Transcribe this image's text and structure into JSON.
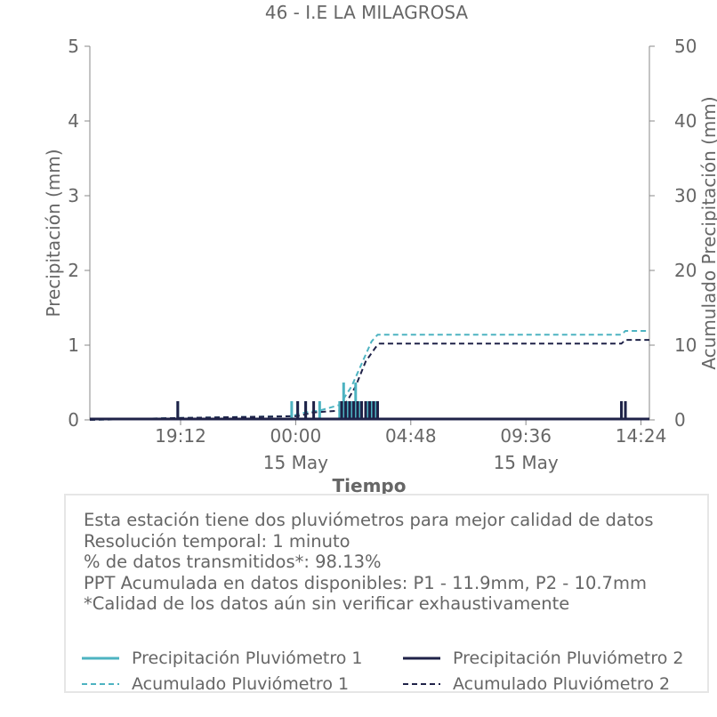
{
  "colors": {
    "p1": "#4db3c1",
    "p2": "#1f2248",
    "text": "#666666",
    "axis": "#888888"
  },
  "info": {
    "lines": [
      "Esta estación tiene dos pluviómetros para mejor calidad de datos",
      "Resolución temporal: 1 minuto",
      "% de datos transmitidos*: 98.13%",
      "PPT Acumulada en datos disponibles: P1 - 11.9mm, P2 - 10.7mm",
      "*Calidad de los datos aún sin verificar exhaustivamente"
    ]
  },
  "chart_data": {
    "type": "line",
    "title": "46 - I.E LA MILAGROSA",
    "xlabel": "Tiempo",
    "ylabel": "Precipitación (mm)",
    "y2label": "Acumulado Precipitación (mm)",
    "ylim": [
      0,
      5
    ],
    "y2lim": [
      0,
      50
    ],
    "yticks": [
      0,
      1,
      2,
      3,
      4,
      5
    ],
    "y2ticks": [
      0,
      10,
      20,
      30,
      40,
      50
    ],
    "xlim": [
      "14 May 15:25",
      "15 May 14:45"
    ],
    "xticks": [
      {
        "t": "14 May 19:12",
        "label": "19:12",
        "sublabel": ""
      },
      {
        "t": "15 May 00:00",
        "label": "00:00",
        "sublabel": "15 May"
      },
      {
        "t": "15 May 04:48",
        "label": "04:48",
        "sublabel": ""
      },
      {
        "t": "15 May 09:36",
        "label": "09:36",
        "sublabel": "15 May"
      },
      {
        "t": "15 May 14:24",
        "label": "14:24",
        "sublabel": ""
      }
    ],
    "series": [
      {
        "name": "Precipitación Pluviómetro 1",
        "axis": "left",
        "style": "solid",
        "points": [
          [
            "14 May 19:05",
            0.25
          ],
          [
            "14 May 23:50",
            0.25
          ],
          [
            "15 May 00:05",
            0.25
          ],
          [
            "15 May 00:25",
            0.25
          ],
          [
            "15 May 01:00",
            0.25
          ],
          [
            "15 May 01:50",
            0.25
          ],
          [
            "15 May 02:00",
            0.5
          ],
          [
            "15 May 02:10",
            0.25
          ],
          [
            "15 May 02:20",
            0.25
          ],
          [
            "15 May 02:30",
            0.5
          ],
          [
            "15 May 02:40",
            0.25
          ],
          [
            "15 May 03:00",
            0.25
          ],
          [
            "15 May 03:10",
            0.25
          ],
          [
            "15 May 03:20",
            0.25
          ],
          [
            "15 May 13:35",
            0.25
          ],
          [
            "15 May 13:45",
            0.25
          ]
        ]
      },
      {
        "name": "Precipitación Pluviómetro 2",
        "axis": "left",
        "style": "solid",
        "points": [
          [
            "14 May 19:05",
            0.25
          ],
          [
            "15 May 00:05",
            0.25
          ],
          [
            "15 May 00:25",
            0.25
          ],
          [
            "15 May 00:45",
            0.25
          ],
          [
            "15 May 01:55",
            0.25
          ],
          [
            "15 May 02:05",
            0.25
          ],
          [
            "15 May 02:15",
            0.25
          ],
          [
            "15 May 02:25",
            0.25
          ],
          [
            "15 May 02:35",
            0.25
          ],
          [
            "15 May 02:45",
            0.25
          ],
          [
            "15 May 02:55",
            0.25
          ],
          [
            "15 May 03:05",
            0.25
          ],
          [
            "15 May 03:15",
            0.25
          ],
          [
            "15 May 03:25",
            0.25
          ],
          [
            "15 May 13:35",
            0.25
          ],
          [
            "15 May 13:45",
            0.25
          ]
        ]
      },
      {
        "name": "Acumulado Pluviómetro 1",
        "axis": "right",
        "style": "dashed",
        "points": [
          [
            "14 May 15:25",
            0
          ],
          [
            "14 May 19:05",
            0.25
          ],
          [
            "14 May 23:50",
            0.5
          ],
          [
            "15 May 00:05",
            0.75
          ],
          [
            "15 May 00:25",
            1.0
          ],
          [
            "15 May 01:00",
            1.25
          ],
          [
            "15 May 01:50",
            2.0
          ],
          [
            "15 May 02:20",
            4.5
          ],
          [
            "15 May 02:45",
            7.5
          ],
          [
            "15 May 03:10",
            10.5
          ],
          [
            "15 May 03:25",
            11.4
          ],
          [
            "15 May 13:35",
            11.4
          ],
          [
            "15 May 13:45",
            11.9
          ],
          [
            "15 May 14:45",
            11.9
          ]
        ]
      },
      {
        "name": "Acumulado Pluviómetro 2",
        "axis": "right",
        "style": "dashed",
        "points": [
          [
            "14 May 15:25",
            0
          ],
          [
            "14 May 19:05",
            0.25
          ],
          [
            "15 May 00:05",
            0.5
          ],
          [
            "15 May 00:25",
            0.75
          ],
          [
            "15 May 00:45",
            1.0
          ],
          [
            "15 May 01:55",
            1.25
          ],
          [
            "15 May 02:30",
            4.5
          ],
          [
            "15 May 02:55",
            7.8
          ],
          [
            "15 May 03:20",
            9.7
          ],
          [
            "15 May 03:30",
            10.2
          ],
          [
            "15 May 13:35",
            10.2
          ],
          [
            "15 May 13:45",
            10.7
          ],
          [
            "15 May 14:45",
            10.7
          ]
        ]
      }
    ],
    "legend_position": "bottom"
  }
}
